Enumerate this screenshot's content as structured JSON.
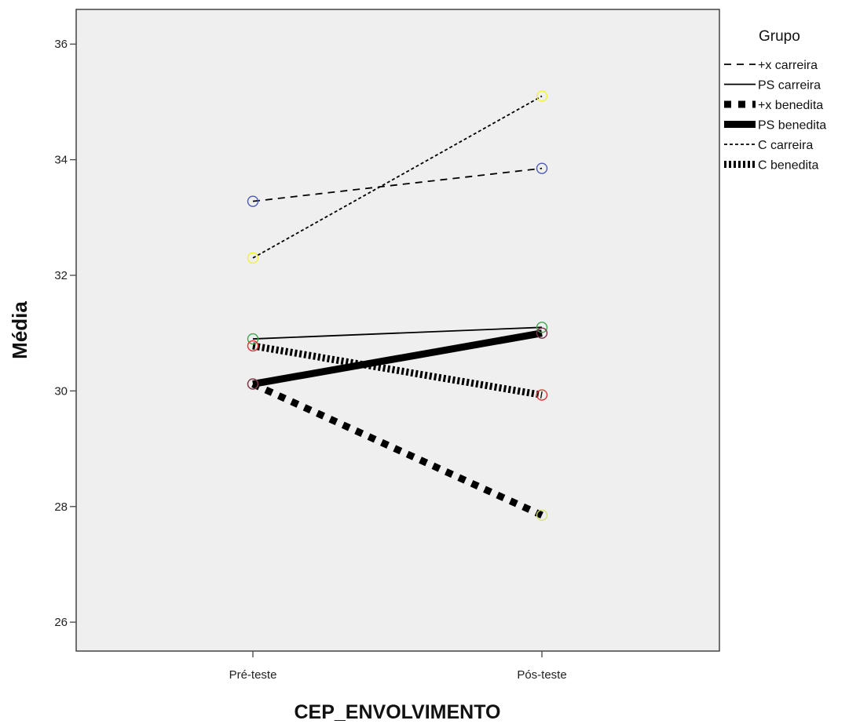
{
  "chart_data": {
    "type": "line",
    "xlabel": "CEP_ENVOLVIMENTO",
    "ylabel": "Média",
    "categories": [
      "Pré-teste",
      "Pós-teste"
    ],
    "ylim": [
      25.5,
      36.6
    ],
    "yticks": [
      26,
      28,
      30,
      32,
      34,
      36
    ],
    "grid": false,
    "plot_background": "#efefef",
    "legend": {
      "title": "Grupo",
      "placement": "right"
    },
    "series": [
      {
        "name": "+x carreira",
        "values": [
          33.28,
          33.85
        ],
        "style": "long-dash",
        "marker_color": "#4b5bb5"
      },
      {
        "name": "PS carreira",
        "values": [
          30.9,
          31.1
        ],
        "style": "thin-solid",
        "marker_color": "#3aa84a"
      },
      {
        "name": "+x benedita",
        "values": [
          30.12,
          27.85
        ],
        "style": "thick-square-dot",
        "marker_color": "#d8e070"
      },
      {
        "name": "PS benedita",
        "values": [
          30.12,
          31.0
        ],
        "style": "thick-solid",
        "marker_color": "#7a2d4a"
      },
      {
        "name": "C carreira",
        "values": [
          32.3,
          35.1
        ],
        "style": "short-dash",
        "marker_color": "#f2f23a"
      },
      {
        "name": "C benedita",
        "values": [
          30.78,
          29.93
        ],
        "style": "thick-fine-dot",
        "marker_color": "#e03030"
      }
    ]
  }
}
